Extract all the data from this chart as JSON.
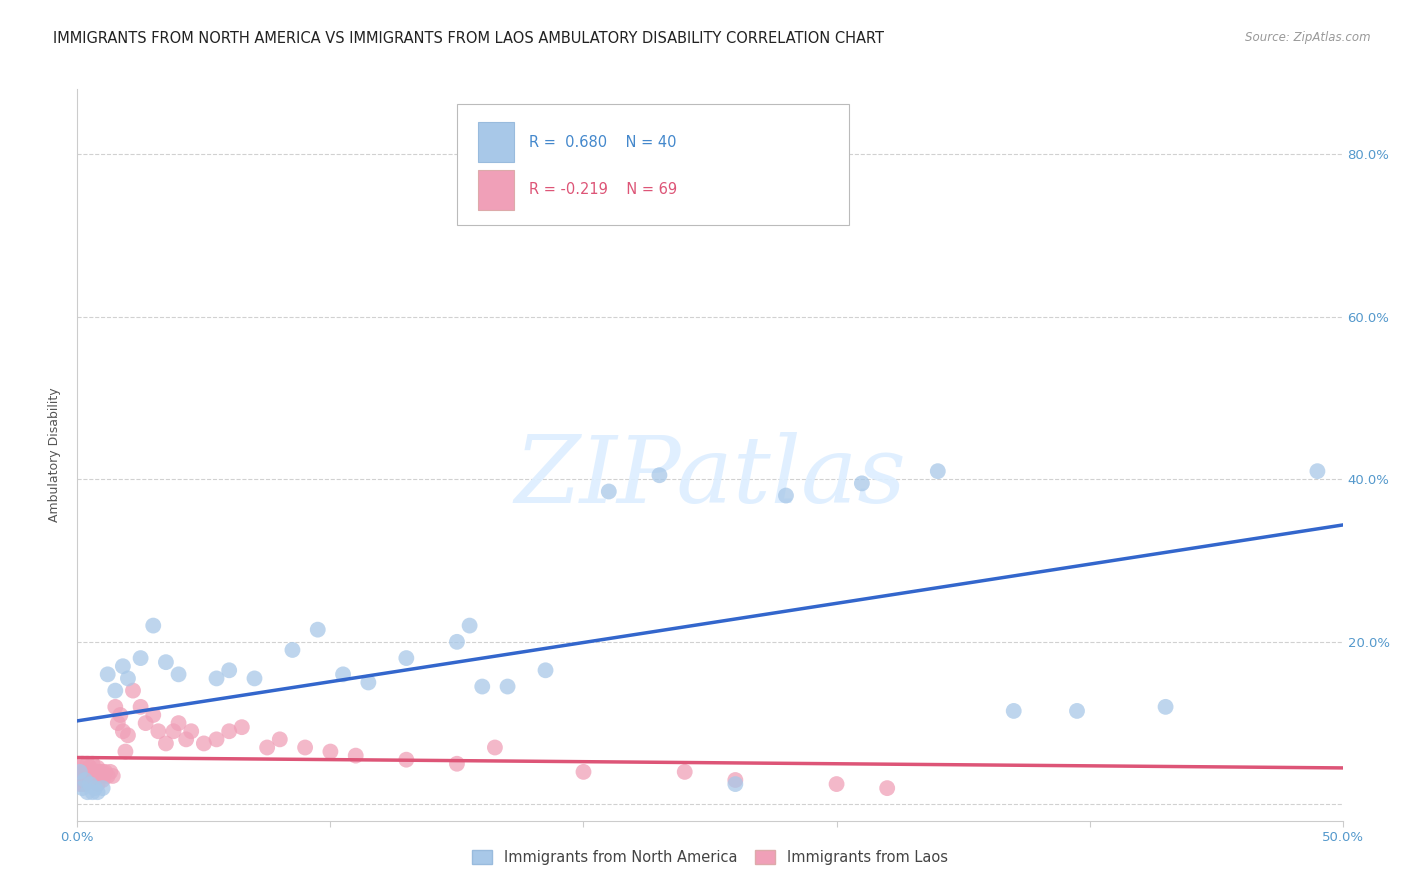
{
  "title": "IMMIGRANTS FROM NORTH AMERICA VS IMMIGRANTS FROM LAOS AMBULATORY DISABILITY CORRELATION CHART",
  "source": "Source: ZipAtlas.com",
  "ylabel": "Ambulatory Disability",
  "xlim": [
    0.0,
    0.5
  ],
  "ylim": [
    -0.02,
    0.88
  ],
  "xticks": [
    0.0,
    0.1,
    0.2,
    0.3,
    0.4,
    0.5
  ],
  "xticklabels": [
    "0.0%",
    "",
    "",
    "",
    "",
    "50.0%"
  ],
  "yticks": [
    0.0,
    0.2,
    0.4,
    0.6,
    0.8
  ],
  "yticklabels_right": [
    "",
    "20.0%",
    "40.0%",
    "60.0%",
    "80.0%"
  ],
  "grid_color": "#cccccc",
  "background_color": "#ffffff",
  "series1_label": "Immigrants from North America",
  "series1_color": "#a8c8e8",
  "series1_line_color": "#3366cc",
  "series1_R": 0.68,
  "series1_N": 40,
  "series2_label": "Immigrants from Laos",
  "series2_color": "#f0a0b8",
  "series2_line_color": "#dd5577",
  "series2_R": -0.219,
  "series2_N": 69,
  "series1_x": [
    0.001,
    0.002,
    0.003,
    0.004,
    0.005,
    0.006,
    0.007,
    0.008,
    0.01,
    0.012,
    0.015,
    0.018,
    0.02,
    0.025,
    0.03,
    0.035,
    0.04,
    0.055,
    0.06,
    0.07,
    0.085,
    0.095,
    0.105,
    0.115,
    0.13,
    0.15,
    0.155,
    0.16,
    0.17,
    0.185,
    0.21,
    0.23,
    0.26,
    0.28,
    0.31,
    0.34,
    0.37,
    0.395,
    0.43,
    0.49
  ],
  "series1_y": [
    0.04,
    0.02,
    0.03,
    0.015,
    0.025,
    0.015,
    0.02,
    0.015,
    0.02,
    0.16,
    0.14,
    0.17,
    0.155,
    0.18,
    0.22,
    0.175,
    0.16,
    0.155,
    0.165,
    0.155,
    0.19,
    0.215,
    0.16,
    0.15,
    0.18,
    0.2,
    0.22,
    0.145,
    0.145,
    0.165,
    0.385,
    0.405,
    0.025,
    0.38,
    0.395,
    0.41,
    0.115,
    0.115,
    0.12,
    0.41
  ],
  "series2_x": [
    0.001,
    0.001,
    0.001,
    0.002,
    0.002,
    0.002,
    0.002,
    0.003,
    0.003,
    0.003,
    0.003,
    0.004,
    0.004,
    0.004,
    0.005,
    0.005,
    0.005,
    0.005,
    0.006,
    0.006,
    0.006,
    0.007,
    0.007,
    0.007,
    0.008,
    0.008,
    0.008,
    0.009,
    0.009,
    0.01,
    0.01,
    0.01,
    0.011,
    0.012,
    0.013,
    0.014,
    0.015,
    0.016,
    0.017,
    0.018,
    0.019,
    0.02,
    0.022,
    0.025,
    0.027,
    0.03,
    0.032,
    0.035,
    0.038,
    0.04,
    0.043,
    0.045,
    0.05,
    0.055,
    0.06,
    0.065,
    0.075,
    0.08,
    0.09,
    0.1,
    0.11,
    0.13,
    0.15,
    0.165,
    0.2,
    0.24,
    0.26,
    0.3,
    0.32
  ],
  "series2_y": [
    0.035,
    0.025,
    0.045,
    0.03,
    0.04,
    0.025,
    0.05,
    0.035,
    0.04,
    0.03,
    0.025,
    0.04,
    0.03,
    0.05,
    0.04,
    0.045,
    0.03,
    0.035,
    0.04,
    0.035,
    0.05,
    0.04,
    0.035,
    0.03,
    0.045,
    0.04,
    0.025,
    0.04,
    0.035,
    0.04,
    0.035,
    0.03,
    0.04,
    0.035,
    0.04,
    0.035,
    0.12,
    0.1,
    0.11,
    0.09,
    0.065,
    0.085,
    0.14,
    0.12,
    0.1,
    0.11,
    0.09,
    0.075,
    0.09,
    0.1,
    0.08,
    0.09,
    0.075,
    0.08,
    0.09,
    0.095,
    0.07,
    0.08,
    0.07,
    0.065,
    0.06,
    0.055,
    0.05,
    0.07,
    0.04,
    0.04,
    0.03,
    0.025,
    0.02
  ],
  "title_fontsize": 10.5,
  "axis_label_fontsize": 9,
  "tick_fontsize": 9.5,
  "legend_fontsize": 10.5,
  "watermark_text": "ZIPatlas",
  "watermark_color": "#ddeeff",
  "watermark_alpha": 0.9
}
